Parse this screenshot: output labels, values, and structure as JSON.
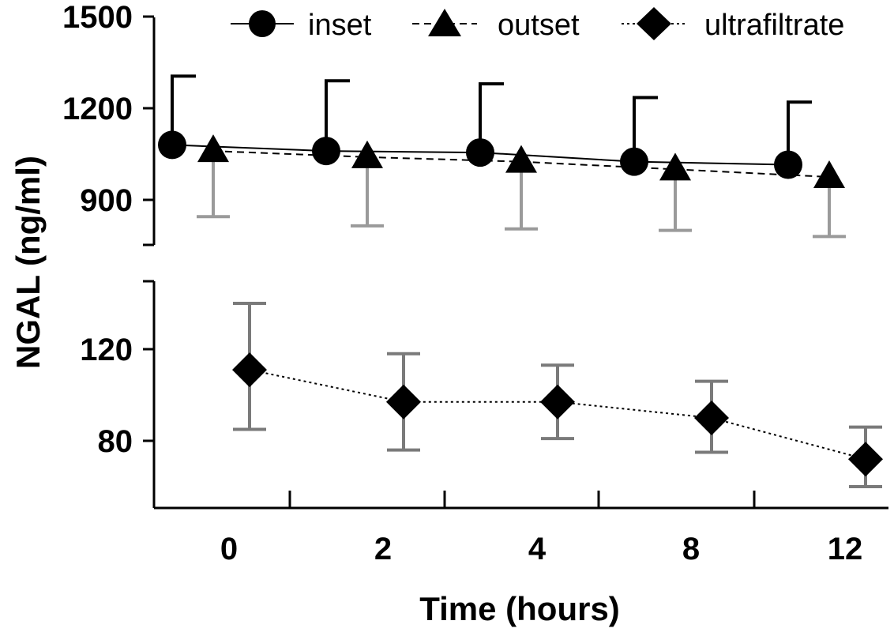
{
  "chart_data": {
    "type": "line",
    "ylabel": "NGAL (ng/ml)",
    "xlabel": "Time (hours)",
    "categories": [
      "0",
      "2",
      "4",
      "8",
      "12"
    ],
    "legend": {
      "position": "top-right",
      "items": [
        "inset",
        "outset",
        "ultrafiltrate"
      ]
    },
    "grid": false,
    "panels": [
      {
        "panel": "upper",
        "ylim": [
          750,
          1500
        ],
        "yticks": [
          900,
          1200,
          1500
        ],
        "series": [
          {
            "name": "inset",
            "marker": "circle",
            "line": "solid",
            "values": [
              1080,
              1060,
              1055,
              1025,
              1015
            ],
            "error_upper": [
              1305,
              1290,
              1280,
              1235,
              1220
            ]
          },
          {
            "name": "outset",
            "marker": "triangle",
            "line": "dashed",
            "values": [
              1060,
              1040,
              1025,
              1000,
              975
            ],
            "error_lower": [
              845,
              815,
              805,
              800,
              780
            ]
          }
        ]
      },
      {
        "panel": "lower",
        "ylim": [
          57,
          153
        ],
        "yticks": [
          80,
          120
        ],
        "series": [
          {
            "name": "ultrafiltrate",
            "marker": "diamond",
            "line": "dotted",
            "values": [
              111,
              97,
              97,
              90,
              72
            ],
            "error_upper": [
              140,
              118,
              113,
              106,
              86
            ],
            "error_lower": [
              85,
              76,
              81,
              75,
              60
            ]
          }
        ]
      }
    ]
  }
}
